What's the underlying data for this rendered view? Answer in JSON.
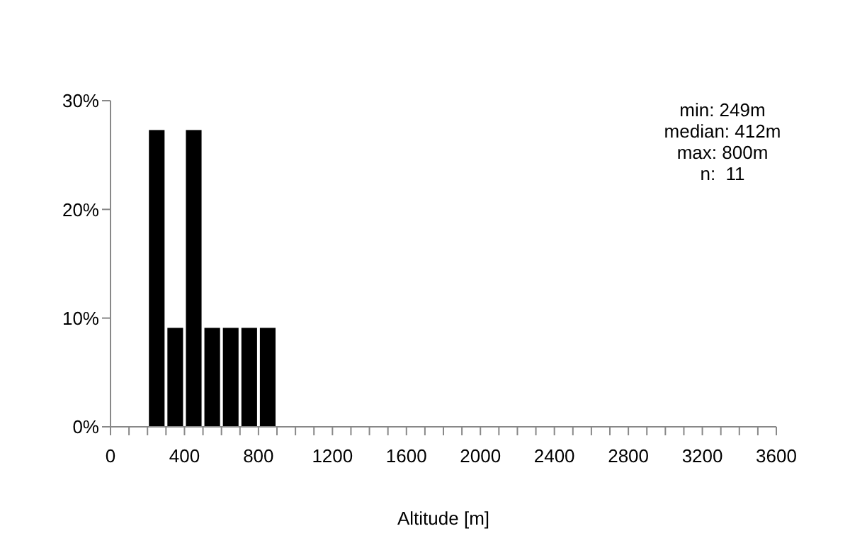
{
  "chart_data": {
    "type": "histogram",
    "xlabel": "Altitude [m]",
    "bins": [
      200,
      300,
      400,
      500,
      600,
      700,
      800,
      900
    ],
    "values": [
      27.3,
      9.1,
      27.3,
      9.1,
      9.1,
      9.1,
      9.1
    ],
    "color": "#000000",
    "xlim": [
      0,
      3600
    ],
    "xticks": [
      0,
      {
        "value": 100,
        "label": null
      },
      {
        "value": 200,
        "label": null
      },
      {
        "value": 300,
        "label": null
      },
      400,
      {
        "value": 500,
        "label": null
      },
      {
        "value": 600,
        "label": null
      },
      {
        "value": 700,
        "label": null
      },
      800,
      {
        "value": 900,
        "label": null
      },
      {
        "value": 1000,
        "label": null
      },
      {
        "value": 1100,
        "label": null
      },
      1200,
      {
        "value": 1300,
        "label": null
      },
      {
        "value": 1400,
        "label": null
      },
      {
        "value": 1500,
        "label": null
      },
      1600,
      {
        "value": 1700,
        "label": null
      },
      {
        "value": 1800,
        "label": null
      },
      {
        "value": 1900,
        "label": null
      },
      2000,
      {
        "value": 2100,
        "label": null
      },
      {
        "value": 2200,
        "label": null
      },
      {
        "value": 2300,
        "label": null
      },
      2400,
      {
        "value": 2500,
        "label": null
      },
      {
        "value": 2600,
        "label": null
      },
      {
        "value": 2700,
        "label": null
      },
      2800,
      {
        "value": 2900,
        "label": null
      },
      {
        "value": 3000,
        "label": null
      },
      {
        "value": 3100,
        "label": null
      },
      3200,
      {
        "value": 3300,
        "label": null
      },
      {
        "value": 3400,
        "label": null
      },
      {
        "value": 3500,
        "label": null
      },
      3600
    ],
    "ylim": [
      0,
      30
    ],
    "yticks": [
      {
        "value": 0,
        "label": "0%"
      },
      {
        "value": 10,
        "label": "10%"
      },
      {
        "value": 20,
        "label": "20%"
      },
      {
        "value": 30,
        "label": "30%"
      }
    ],
    "grid": false,
    "legend": false,
    "annotations": [
      "min: 249m",
      "median: 412m",
      "max: 800m",
      "n:  11"
    ]
  }
}
